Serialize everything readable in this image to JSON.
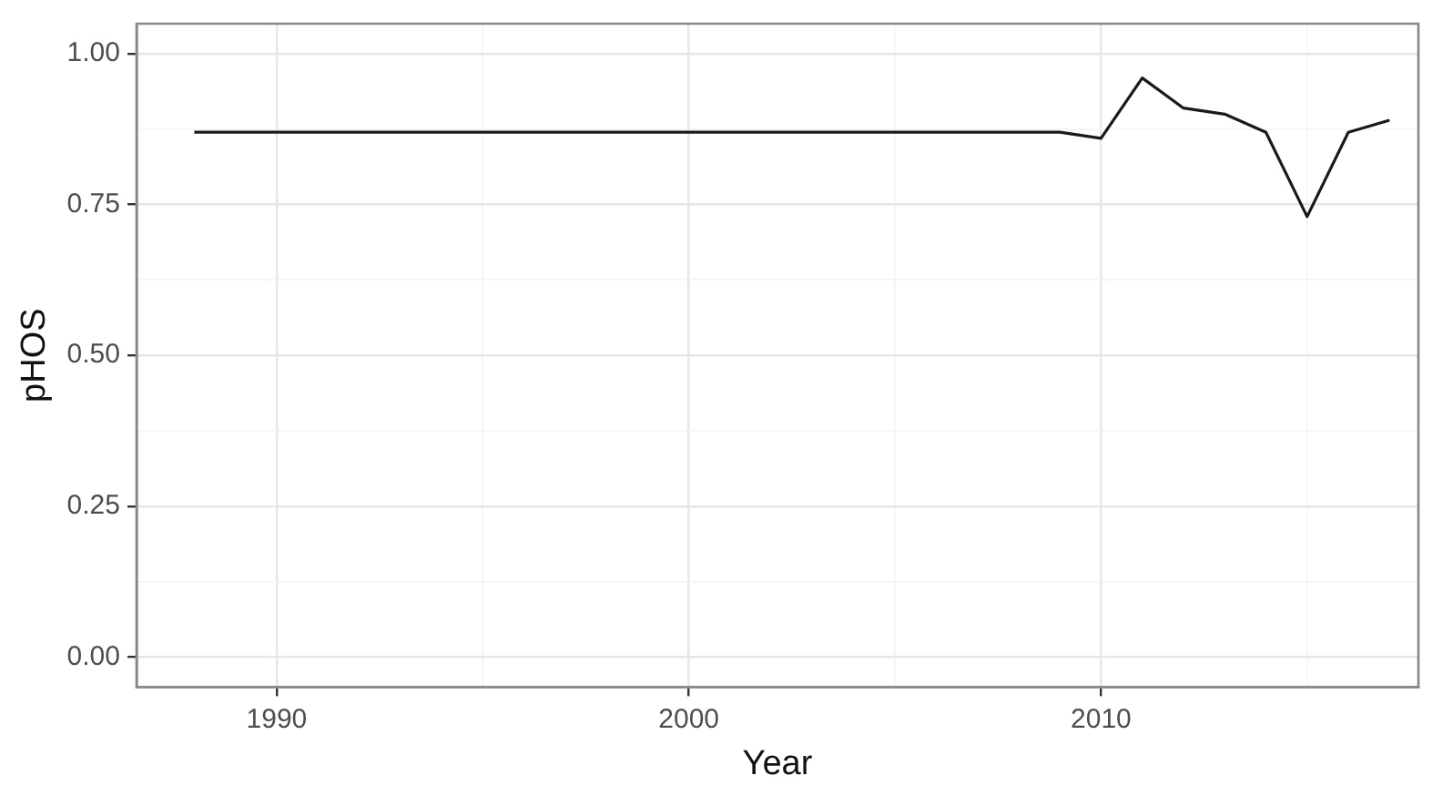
{
  "chart_data": {
    "type": "line",
    "xlabel": "Year",
    "ylabel": "pHOS",
    "x": [
      1988,
      1989,
      1990,
      1991,
      1992,
      1993,
      1994,
      1995,
      1996,
      1997,
      1998,
      1999,
      2000,
      2001,
      2002,
      2003,
      2004,
      2005,
      2006,
      2007,
      2008,
      2009,
      2010,
      2011,
      2012,
      2013,
      2014,
      2015,
      2016,
      2017
    ],
    "series": [
      {
        "color": "#1a1a1a",
        "values": [
          0.87,
          0.87,
          0.87,
          0.87,
          0.87,
          0.87,
          0.87,
          0.87,
          0.87,
          0.87,
          0.87,
          0.87,
          0.87,
          0.87,
          0.87,
          0.87,
          0.87,
          0.87,
          0.87,
          0.87,
          0.87,
          0.87,
          0.86,
          0.96,
          0.91,
          0.9,
          0.87,
          0.73,
          0.87,
          0.89
        ]
      }
    ],
    "xlim": [
      1986.6,
      2017.7
    ],
    "xticks": [
      1990,
      {
        "value": 1995,
        "label": null
      },
      2000,
      {
        "value": 2005,
        "label": null
      },
      2010,
      {
        "value": 2015,
        "label": null
      }
    ],
    "ylim": [
      -0.05,
      1.05
    ],
    "yticks": [
      {
        "value": 0,
        "label": "0.00"
      },
      {
        "value": 0.125,
        "label": null
      },
      {
        "value": 0.25,
        "label": "0.25"
      },
      {
        "value": 0.375,
        "label": null
      },
      {
        "value": 0.5,
        "label": "0.50"
      },
      {
        "value": 0.625,
        "label": null
      },
      {
        "value": 0.75,
        "label": "0.75"
      },
      {
        "value": 0.875,
        "label": null
      },
      {
        "value": 1,
        "label": "1.00"
      }
    ],
    "grid": true,
    "legend": false,
    "marker": "none",
    "line_style": "solid"
  }
}
